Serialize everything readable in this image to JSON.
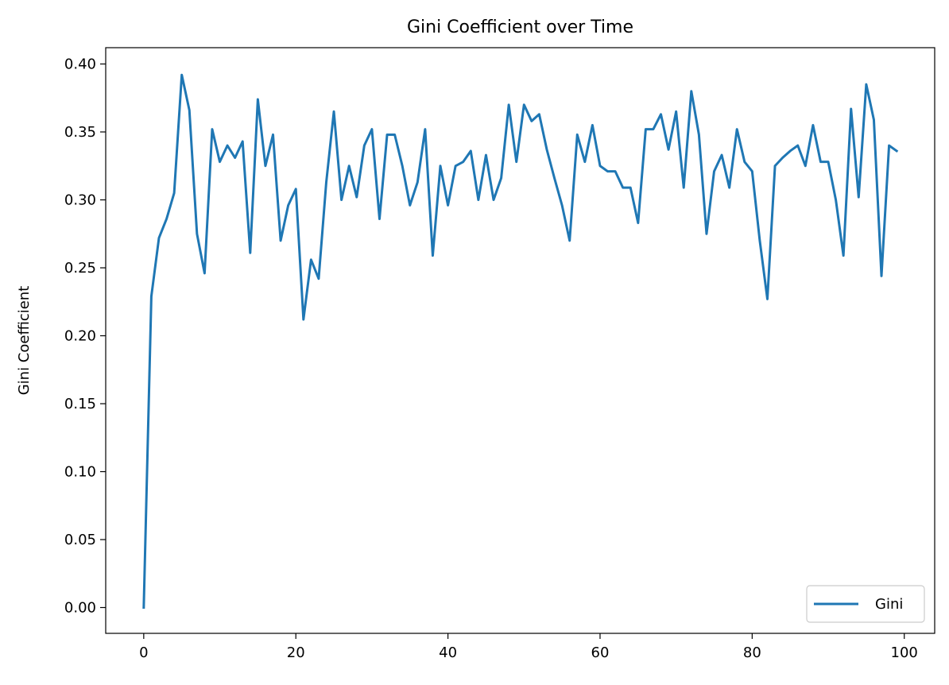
{
  "chart_data": {
    "type": "line",
    "title": "Gini Coefficient over Time",
    "xlabel": "",
    "ylabel": "Gini Coefficient",
    "xlim": [
      -5,
      104
    ],
    "ylim": [
      -0.019,
      0.412
    ],
    "xticks": [
      0,
      20,
      40,
      60,
      80,
      100
    ],
    "yticks": [
      0.0,
      0.05,
      0.1,
      0.15,
      0.2,
      0.25,
      0.3,
      0.35,
      0.4
    ],
    "grid": false,
    "legend": {
      "position": "lower-right"
    },
    "series": [
      {
        "name": "Gini",
        "color": "#1f77b4",
        "x": [
          0,
          1,
          2,
          3,
          4,
          5,
          6,
          7,
          8,
          9,
          10,
          11,
          12,
          13,
          14,
          15,
          16,
          17,
          18,
          19,
          20,
          21,
          22,
          23,
          24,
          25,
          26,
          27,
          28,
          29,
          30,
          31,
          32,
          33,
          34,
          35,
          36,
          37,
          38,
          39,
          40,
          41,
          42,
          43,
          44,
          45,
          46,
          47,
          48,
          49,
          50,
          51,
          52,
          53,
          54,
          55,
          56,
          57,
          58,
          59,
          60,
          61,
          62,
          63,
          64,
          65,
          66,
          67,
          68,
          69,
          70,
          71,
          72,
          73,
          74,
          75,
          76,
          77,
          78,
          79,
          80,
          81,
          82,
          83,
          84,
          85,
          86,
          87,
          88,
          89,
          90,
          91,
          92,
          93,
          94,
          95,
          96,
          97,
          98,
          99
        ],
        "values": [
          0.0,
          0.229,
          0.272,
          0.286,
          0.305,
          0.392,
          0.366,
          0.275,
          0.246,
          0.352,
          0.328,
          0.34,
          0.331,
          0.343,
          0.261,
          0.374,
          0.325,
          0.348,
          0.27,
          0.296,
          0.308,
          0.212,
          0.256,
          0.242,
          0.313,
          0.365,
          0.3,
          0.325,
          0.302,
          0.34,
          0.352,
          0.286,
          0.348,
          0.348,
          0.325,
          0.296,
          0.313,
          0.352,
          0.259,
          0.325,
          0.296,
          0.325,
          0.328,
          0.336,
          0.3,
          0.333,
          0.3,
          0.316,
          0.37,
          0.328,
          0.37,
          0.358,
          0.363,
          0.337,
          0.316,
          0.296,
          0.27,
          0.348,
          0.328,
          0.355,
          0.325,
          0.321,
          0.321,
          0.309,
          0.309,
          0.283,
          0.352,
          0.352,
          0.363,
          0.337,
          0.365,
          0.309,
          0.38,
          0.348,
          0.275,
          0.321,
          0.333,
          0.309,
          0.352,
          0.328,
          0.321,
          0.27,
          0.227,
          0.325,
          0.331,
          0.336,
          0.34,
          0.325,
          0.355,
          0.328,
          0.328,
          0.3,
          0.259,
          0.367,
          0.302,
          0.385,
          0.359,
          0.244,
          0.34,
          0.336
        ]
      }
    ]
  }
}
